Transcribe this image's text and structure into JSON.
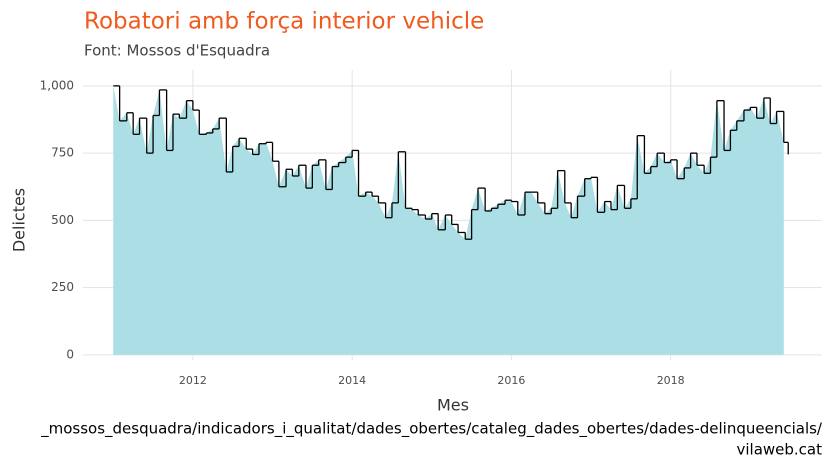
{
  "chart_data": {
    "type": "area-step",
    "title": "Robatori amb força interior vehicle",
    "subtitle": "Font: Mossos d'Esquadra",
    "x_label": "Mes",
    "y_label": "Delictes",
    "caption": [
      "_mossos_desquadra/indicadors_i_qualitat/dades_obertes/cataleg_dades_obertes/dades-delinqueencials/",
      "vilaweb.cat"
    ],
    "title_color": "#f15a1f",
    "fill_color": "#abdfe5",
    "line_color": "#000000",
    "grid": true,
    "xlim": [
      2010.62,
      2019.9
    ],
    "xticks": [
      2012,
      2014,
      2016,
      2018
    ],
    "ylim": [
      -19,
      1059
    ],
    "yticks": [
      0,
      250,
      500,
      750,
      {
        "value": 1000,
        "label": "1,000"
      }
    ],
    "x": [
      2011,
      2011.08,
      2011.17,
      2011.25,
      2011.33,
      2011.42,
      2011.5,
      2011.58,
      2011.67,
      2011.75,
      2011.83,
      2011.92,
      2012,
      2012.08,
      2012.17,
      2012.25,
      2012.33,
      2012.42,
      2012.5,
      2012.58,
      2012.67,
      2012.75,
      2012.83,
      2012.92,
      2013,
      2013.08,
      2013.17,
      2013.25,
      2013.33,
      2013.42,
      2013.5,
      2013.58,
      2013.67,
      2013.75,
      2013.83,
      2013.92,
      2014,
      2014.08,
      2014.17,
      2014.25,
      2014.33,
      2014.42,
      2014.5,
      2014.58,
      2014.67,
      2014.75,
      2014.83,
      2014.92,
      2015,
      2015.08,
      2015.17,
      2015.25,
      2015.33,
      2015.42,
      2015.5,
      2015.58,
      2015.67,
      2015.75,
      2015.83,
      2015.92,
      2016,
      2016.08,
      2016.17,
      2016.25,
      2016.33,
      2016.42,
      2016.5,
      2016.58,
      2016.67,
      2016.75,
      2016.83,
      2016.92,
      2017,
      2017.08,
      2017.17,
      2017.25,
      2017.33,
      2017.42,
      2017.5,
      2017.58,
      2017.67,
      2017.75,
      2017.83,
      2017.92,
      2018,
      2018.08,
      2018.17,
      2018.25,
      2018.33,
      2018.42,
      2018.5,
      2018.58,
      2018.67,
      2018.75,
      2018.83,
      2018.92,
      2019,
      2019.08,
      2019.17,
      2019.25,
      2019.33,
      2019.42
    ],
    "values": [
      1000,
      870,
      900,
      820,
      880,
      750,
      890,
      985,
      760,
      895,
      880,
      945,
      910,
      820,
      825,
      840,
      880,
      680,
      775,
      805,
      765,
      745,
      785,
      790,
      720,
      625,
      690,
      665,
      705,
      620,
      705,
      725,
      615,
      700,
      715,
      735,
      760,
      590,
      605,
      590,
      565,
      510,
      565,
      755,
      545,
      540,
      520,
      505,
      525,
      465,
      520,
      485,
      455,
      430,
      540,
      620,
      535,
      545,
      560,
      575,
      570,
      520,
      605,
      605,
      565,
      525,
      545,
      685,
      565,
      510,
      590,
      655,
      660,
      530,
      570,
      540,
      630,
      545,
      580,
      815,
      675,
      700,
      750,
      715,
      725,
      655,
      695,
      750,
      705,
      675,
      735,
      945,
      760,
      835,
      870,
      910,
      920,
      880,
      955,
      860,
      905,
      790
    ]
  }
}
